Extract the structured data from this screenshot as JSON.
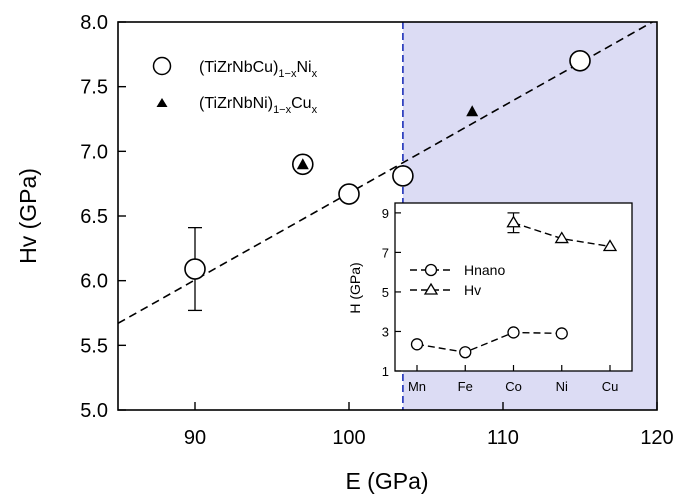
{
  "chart_data": [
    {
      "type": "scatter",
      "xlabel": "E (GPa)",
      "ylabel": "Hv (GPa)",
      "xlim": [
        85,
        120
      ],
      "ylim": [
        5.0,
        8.0
      ],
      "x_ticks": [
        "90",
        "100",
        "110",
        "120"
      ],
      "y_ticks": [
        "5.0",
        "5.5",
        "6.0",
        "6.5",
        "7.0",
        "7.5",
        "8.0"
      ],
      "shaded_region_x": [
        103.5,
        120
      ],
      "shaded_region_color": "#dcdcf4",
      "divider_x": 103.5,
      "divider_color": "#1c2fb8",
      "series": [
        {
          "name_parts": [
            "(TiZrNbCu)",
            "1−x",
            "Ni",
            "x"
          ],
          "marker": "open-circle",
          "points": [
            {
              "x": 90,
              "y": 6.09,
              "err": 0.32
            },
            {
              "x": 97,
              "y": 6.9
            },
            {
              "x": 100,
              "y": 6.67
            },
            {
              "x": 103.5,
              "y": 6.81
            },
            {
              "x": 115,
              "y": 7.7
            }
          ]
        },
        {
          "name_parts": [
            "(TiZrNbNi)",
            "1−x",
            "Cu",
            "x"
          ],
          "marker": "filled-triangle",
          "points": [
            {
              "x": 97,
              "y": 6.9
            },
            {
              "x": 108,
              "y": 7.31
            }
          ]
        }
      ],
      "fit_line": {
        "style": "dashed",
        "from": {
          "x": 85,
          "y": 5.67
        },
        "to": {
          "x": 120,
          "y": 8.02
        }
      }
    },
    {
      "type": "line",
      "ylabel": "H (GPa)",
      "categories": [
        "Mn",
        "Fe",
        "Co",
        "Ni",
        "Cu"
      ],
      "ylim": [
        1,
        9.5
      ],
      "y_ticks": [
        "1",
        "3",
        "5",
        "7",
        "9"
      ],
      "series": [
        {
          "name": "Hnano",
          "marker": "open-circle",
          "values": [
            2.35,
            1.95,
            2.95,
            2.9,
            null
          ]
        },
        {
          "name": "Hv",
          "marker": "open-triangle",
          "values": [
            null,
            null,
            8.5,
            7.7,
            7.3
          ],
          "err": [
            null,
            null,
            0.5,
            null,
            null
          ]
        }
      ]
    }
  ]
}
